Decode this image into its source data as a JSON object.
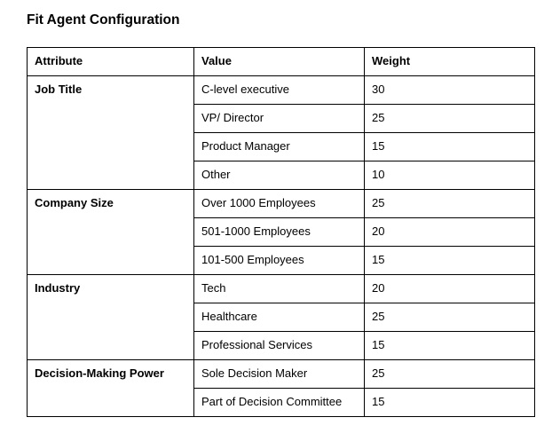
{
  "page_title": "Fit Agent Configuration",
  "colors": {
    "background": "#ffffff",
    "text": "#000000",
    "border": "#000000"
  },
  "table": {
    "columns": [
      "Attribute",
      "Value",
      "Weight"
    ],
    "groups": [
      {
        "attribute": "Job Title",
        "rows": [
          {
            "value": "C-level executive",
            "weight": "30"
          },
          {
            "value": "VP/ Director",
            "weight": "25"
          },
          {
            "value": "Product Manager",
            "weight": "15"
          },
          {
            "value": "Other",
            "weight": "10"
          }
        ]
      },
      {
        "attribute": "Company Size",
        "rows": [
          {
            "value": "Over 1000 Employees",
            "weight": "25"
          },
          {
            "value": "501-1000 Employees",
            "weight": "20"
          },
          {
            "value": "101-500 Employees",
            "weight": "15"
          }
        ]
      },
      {
        "attribute": "Industry",
        "rows": [
          {
            "value": "Tech",
            "weight": "20"
          },
          {
            "value": "Healthcare",
            "weight": "25"
          },
          {
            "value": "Professional Services",
            "weight": "15"
          }
        ]
      },
      {
        "attribute": "Decision-Making Power",
        "rows": [
          {
            "value": "Sole Decision Maker",
            "weight": "25"
          },
          {
            "value": "Part of Decision Committee",
            "weight": "15"
          }
        ]
      }
    ]
  }
}
